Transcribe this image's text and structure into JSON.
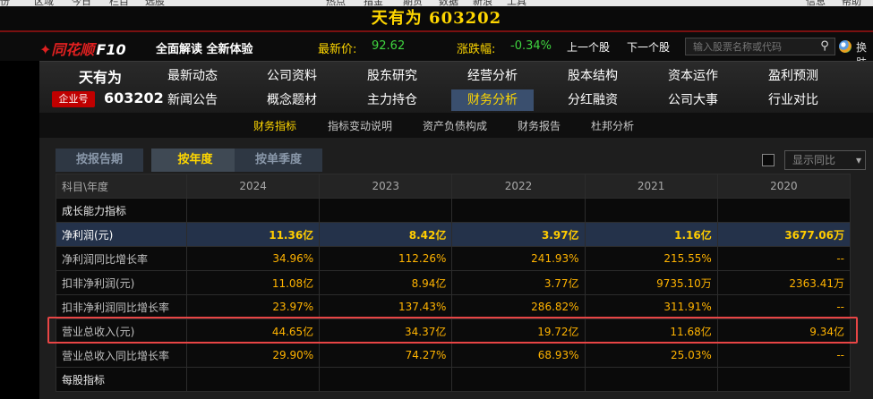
{
  "window": {
    "title": "天有为 603202"
  },
  "menubar": {
    "items": [
      "份",
      "区域",
      "今日",
      "栏目",
      "选股",
      "热点",
      "指金",
      "期货",
      "数据",
      "新浪",
      "工具",
      "信息",
      "帮助"
    ]
  },
  "header": {
    "logo_text": "同花顺",
    "logo_suffix": "F10",
    "slogan": "全面解读 全新体验",
    "latest_price_label": "最新价:",
    "latest_price": "92.62",
    "change_label": "涨跌幅:",
    "change_value": "-0.34%",
    "prev_stock": "上一个股",
    "next_stock": "下一个股",
    "search_placeholder": "输入股票名称或代码",
    "swap_label": "换肤"
  },
  "stock": {
    "name": "天有为",
    "badge": "企业号",
    "code": "603202"
  },
  "nav": {
    "row1": [
      "最新动态",
      "公司资料",
      "股东研究",
      "经营分析",
      "股本结构",
      "资本运作",
      "盈利预测"
    ],
    "row2": [
      "新闻公告",
      "概念题材",
      "主力持仓",
      "财务分析",
      "分红融资",
      "公司大事",
      "行业对比"
    ],
    "active": "财务分析"
  },
  "subtabs": {
    "items": [
      "财务指标",
      "指标变动说明",
      "资产负债构成",
      "财务报告",
      "杜邦分析"
    ],
    "active": "财务指标"
  },
  "period_tabs": {
    "items": [
      "按报告期",
      "按年度",
      "按单季度"
    ],
    "active": "按年度"
  },
  "show_yoy": {
    "label": "显示同比",
    "checked": false
  },
  "table": {
    "header": {
      "name": "科目\\年度",
      "years": [
        "2024",
        "2023",
        "2022",
        "2021",
        "2020"
      ]
    },
    "rows": [
      {
        "type": "section",
        "name": "成长能力指标",
        "values": [
          "",
          "",
          "",
          "",
          ""
        ]
      },
      {
        "type": "hl",
        "name": "净利润(元)",
        "values": [
          "11.36亿",
          "8.42亿",
          "3.97亿",
          "1.16亿",
          "3677.06万"
        ]
      },
      {
        "type": "row",
        "name": "净利润同比增长率",
        "values": [
          "34.96%",
          "112.26%",
          "241.93%",
          "215.55%",
          "--"
        ]
      },
      {
        "type": "row",
        "name": "扣非净利润(元)",
        "values": [
          "11.08亿",
          "8.94亿",
          "3.77亿",
          "9735.10万",
          "2363.41万"
        ]
      },
      {
        "type": "row",
        "name": "扣非净利润同比增长率",
        "values": [
          "23.97%",
          "137.43%",
          "286.82%",
          "311.91%",
          "--"
        ]
      },
      {
        "type": "row",
        "name": "营业总收入(元)",
        "values": [
          "44.65亿",
          "34.37亿",
          "19.72亿",
          "11.68亿",
          "9.34亿"
        ]
      },
      {
        "type": "row",
        "name": "营业总收入同比增长率",
        "values": [
          "29.90%",
          "74.27%",
          "68.93%",
          "25.03%",
          "--"
        ]
      },
      {
        "type": "section",
        "name": "每股指标",
        "values": [
          "",
          "",
          "",
          "",
          ""
        ]
      }
    ]
  },
  "colors": {
    "accent": "#ffd700",
    "highlight_box": "#e84545",
    "value": "#ffb300",
    "up_down": "#3fd43f"
  }
}
